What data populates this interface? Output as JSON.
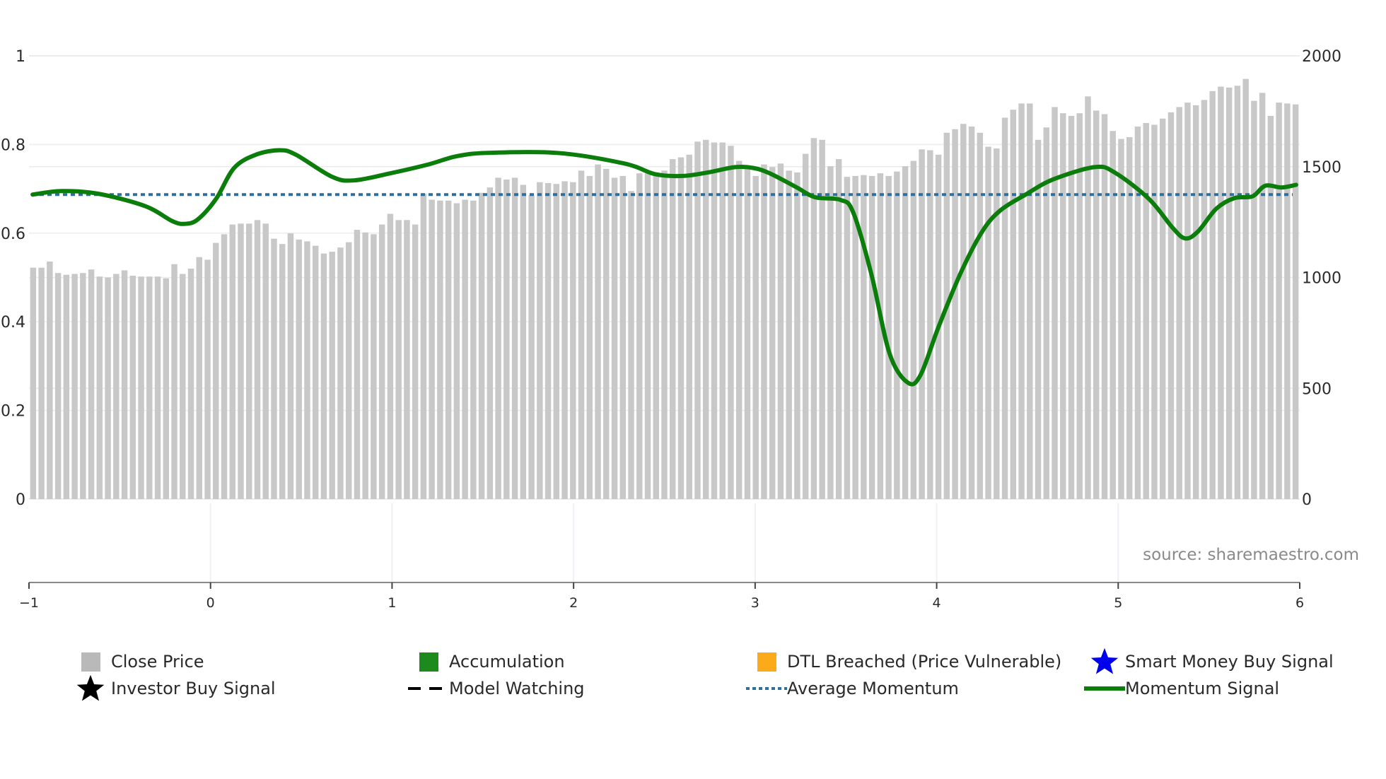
{
  "chart_data": {
    "type": "bar+line",
    "title": "",
    "xlabel": "",
    "ylabel_left": "",
    "ylabel_right": "",
    "grid": true,
    "legend_position": "bottom",
    "x_axis": {
      "range": [
        -1,
        6
      ],
      "ticks": [
        "−1",
        "0",
        "1",
        "2",
        "3",
        "4",
        "5",
        "6"
      ]
    },
    "y_left": {
      "range": [
        0,
        1
      ],
      "ticks": [
        "0",
        "0.2",
        "0.4",
        "0.6",
        "0.8",
        "1"
      ]
    },
    "y_right": {
      "range": [
        0,
        2000
      ],
      "ticks": [
        "0",
        "500",
        "1000",
        "1500",
        "2000"
      ]
    },
    "series": [
      {
        "name": "Close Price",
        "type": "bar",
        "axis": "right",
        "color": "#c8c8c8",
        "values": [
          1044,
          1044,
          1072,
          1020,
          1012,
          1016,
          1020,
          1036,
          1004,
          1000,
          1016,
          1032,
          1008,
          1004,
          1004,
          1004,
          996,
          1060,
          1016,
          1040,
          1092,
          1080,
          1156,
          1195,
          1239,
          1243,
          1243,
          1259,
          1243,
          1175,
          1151,
          1199,
          1171,
          1163,
          1143,
          1108,
          1116,
          1135,
          1159,
          1215,
          1203,
          1195,
          1239,
          1287,
          1259,
          1259,
          1239,
          1378,
          1351,
          1347,
          1347,
          1335,
          1351,
          1347,
          1382,
          1406,
          1450,
          1442,
          1450,
          1418,
          1371,
          1430,
          1426,
          1422,
          1434,
          1430,
          1482,
          1458,
          1510,
          1490,
          1450,
          1458,
          1390,
          1470,
          1470,
          1474,
          1482,
          1534,
          1542,
          1554,
          1613,
          1621,
          1609,
          1609,
          1594,
          1526,
          1502,
          1458,
          1510,
          1498,
          1514,
          1482,
          1474,
          1558,
          1629,
          1621,
          1502,
          1534,
          1454,
          1458,
          1462,
          1458,
          1470,
          1458,
          1478,
          1502,
          1526,
          1578,
          1574,
          1554,
          1653,
          1669,
          1693,
          1681,
          1653,
          1590,
          1582,
          1721,
          1757,
          1785,
          1785,
          1621,
          1677,
          1769,
          1741,
          1729,
          1741,
          1817,
          1753,
          1737,
          1661,
          1625,
          1633,
          1681,
          1697,
          1689,
          1717,
          1745,
          1769,
          1789,
          1777,
          1801,
          1841,
          1861,
          1857,
          1865,
          1896,
          1797,
          1833,
          1729,
          1789,
          1785,
          1781
        ]
      },
      {
        "name": "Momentum Signal",
        "type": "line",
        "axis": "left",
        "color": "#0b7d0b",
        "points": [
          [
            -0.98,
            0.687
          ],
          [
            -0.82,
            0.695
          ],
          [
            -0.62,
            0.689
          ],
          [
            -0.36,
            0.661
          ],
          [
            -0.21,
            0.627
          ],
          [
            -0.14,
            0.621
          ],
          [
            -0.07,
            0.631
          ],
          [
            0.03,
            0.677
          ],
          [
            0.13,
            0.747
          ],
          [
            0.25,
            0.777
          ],
          [
            0.38,
            0.787
          ],
          [
            0.47,
            0.777
          ],
          [
            0.67,
            0.727
          ],
          [
            0.79,
            0.719
          ],
          [
            0.99,
            0.735
          ],
          [
            1.2,
            0.755
          ],
          [
            1.35,
            0.773
          ],
          [
            1.52,
            0.781
          ],
          [
            1.91,
            0.781
          ],
          [
            2.28,
            0.757
          ],
          [
            2.45,
            0.733
          ],
          [
            2.6,
            0.729
          ],
          [
            2.74,
            0.737
          ],
          [
            2.89,
            0.749
          ],
          [
            2.99,
            0.747
          ],
          [
            3.08,
            0.735
          ],
          [
            3.23,
            0.703
          ],
          [
            3.33,
            0.681
          ],
          [
            3.47,
            0.675
          ],
          [
            3.54,
            0.647
          ],
          [
            3.64,
            0.508
          ],
          [
            3.74,
            0.329
          ],
          [
            3.84,
            0.263
          ],
          [
            3.91,
            0.279
          ],
          [
            4.01,
            0.388
          ],
          [
            4.13,
            0.508
          ],
          [
            4.25,
            0.603
          ],
          [
            4.35,
            0.651
          ],
          [
            4.49,
            0.687
          ],
          [
            4.64,
            0.721
          ],
          [
            4.87,
            0.749
          ],
          [
            4.98,
            0.737
          ],
          [
            5.17,
            0.677
          ],
          [
            5.3,
            0.612
          ],
          [
            5.37,
            0.588
          ],
          [
            5.44,
            0.604
          ],
          [
            5.54,
            0.655
          ],
          [
            5.64,
            0.679
          ],
          [
            5.74,
            0.683
          ],
          [
            5.81,
            0.707
          ],
          [
            5.9,
            0.703
          ],
          [
            5.98,
            0.709
          ]
        ]
      },
      {
        "name": "Average Momentum",
        "type": "line",
        "style": "dotted",
        "axis": "left",
        "color": "#2e6f9e",
        "value": 0.687
      }
    ]
  },
  "legend": {
    "items": [
      {
        "label": "Close Price",
        "icon": "grey-square",
        "color": "#b9b9b9"
      },
      {
        "label": "Accumulation",
        "icon": "green-square",
        "color": "#1c8a1c"
      },
      {
        "label": "DTL Breached (Price Vulnerable)",
        "icon": "orange-square",
        "color": "#fbab19"
      },
      {
        "label": "Smart Money Buy Signal",
        "icon": "blue-star",
        "color": "#0000ee"
      },
      {
        "label": "Investor Buy Signal",
        "icon": "black-star",
        "color": "#000000"
      },
      {
        "label": "Model Watching",
        "icon": "black-dashed-line",
        "color": "#000000"
      },
      {
        "label": "Average Momentum",
        "icon": "blue-dotted-line",
        "color": "#2e6f9e"
      },
      {
        "label": "Momentum Signal",
        "icon": "green-solid-line",
        "color": "#0b7d0b"
      }
    ]
  },
  "source": "source: sharemaestro.com"
}
